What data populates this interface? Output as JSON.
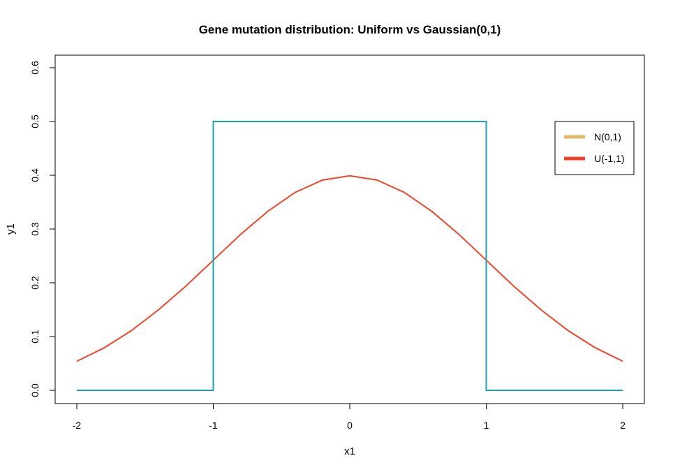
{
  "chart_data": {
    "type": "line",
    "title": "Gene mutation distribution: Uniform vs Gaussian(0,1)",
    "xlabel": "x1",
    "ylabel": "y1",
    "xlim": [
      -2,
      2
    ],
    "ylim": [
      0,
      0.6
    ],
    "xticks": [
      "-2",
      "-1",
      "0",
      "1",
      "2"
    ],
    "yticks": [
      "0.0",
      "0.1",
      "0.2",
      "0.3",
      "0.4",
      "0.5",
      "0.6"
    ],
    "grid": false,
    "legend_position": "top-right",
    "legend": [
      {
        "label": "N(0,1)",
        "color": "#E0B86A"
      },
      {
        "label": "U(-1,1)",
        "color": "#F0442A"
      }
    ],
    "series": [
      {
        "color": "#F0442A",
        "x": [
          -2.0,
          -1.8,
          -1.6,
          -1.4,
          -1.2,
          -1.0,
          -0.8,
          -0.6,
          -0.4,
          -0.2,
          0.0,
          0.2,
          0.4,
          0.6,
          0.8,
          1.0,
          1.2,
          1.4,
          1.6,
          1.8,
          2.0
        ],
        "y": [
          0.054,
          0.079,
          0.111,
          0.15,
          0.194,
          0.242,
          0.29,
          0.333,
          0.368,
          0.391,
          0.399,
          0.391,
          0.368,
          0.333,
          0.29,
          0.242,
          0.194,
          0.15,
          0.111,
          0.079,
          0.054
        ]
      },
      {
        "color": "#1AA3B5",
        "step": true,
        "x": [
          -2.0,
          -1.0,
          -1.0,
          1.0,
          1.0,
          2.0
        ],
        "y": [
          0.0,
          0.0,
          0.5,
          0.5,
          0.0,
          0.0
        ]
      }
    ]
  }
}
